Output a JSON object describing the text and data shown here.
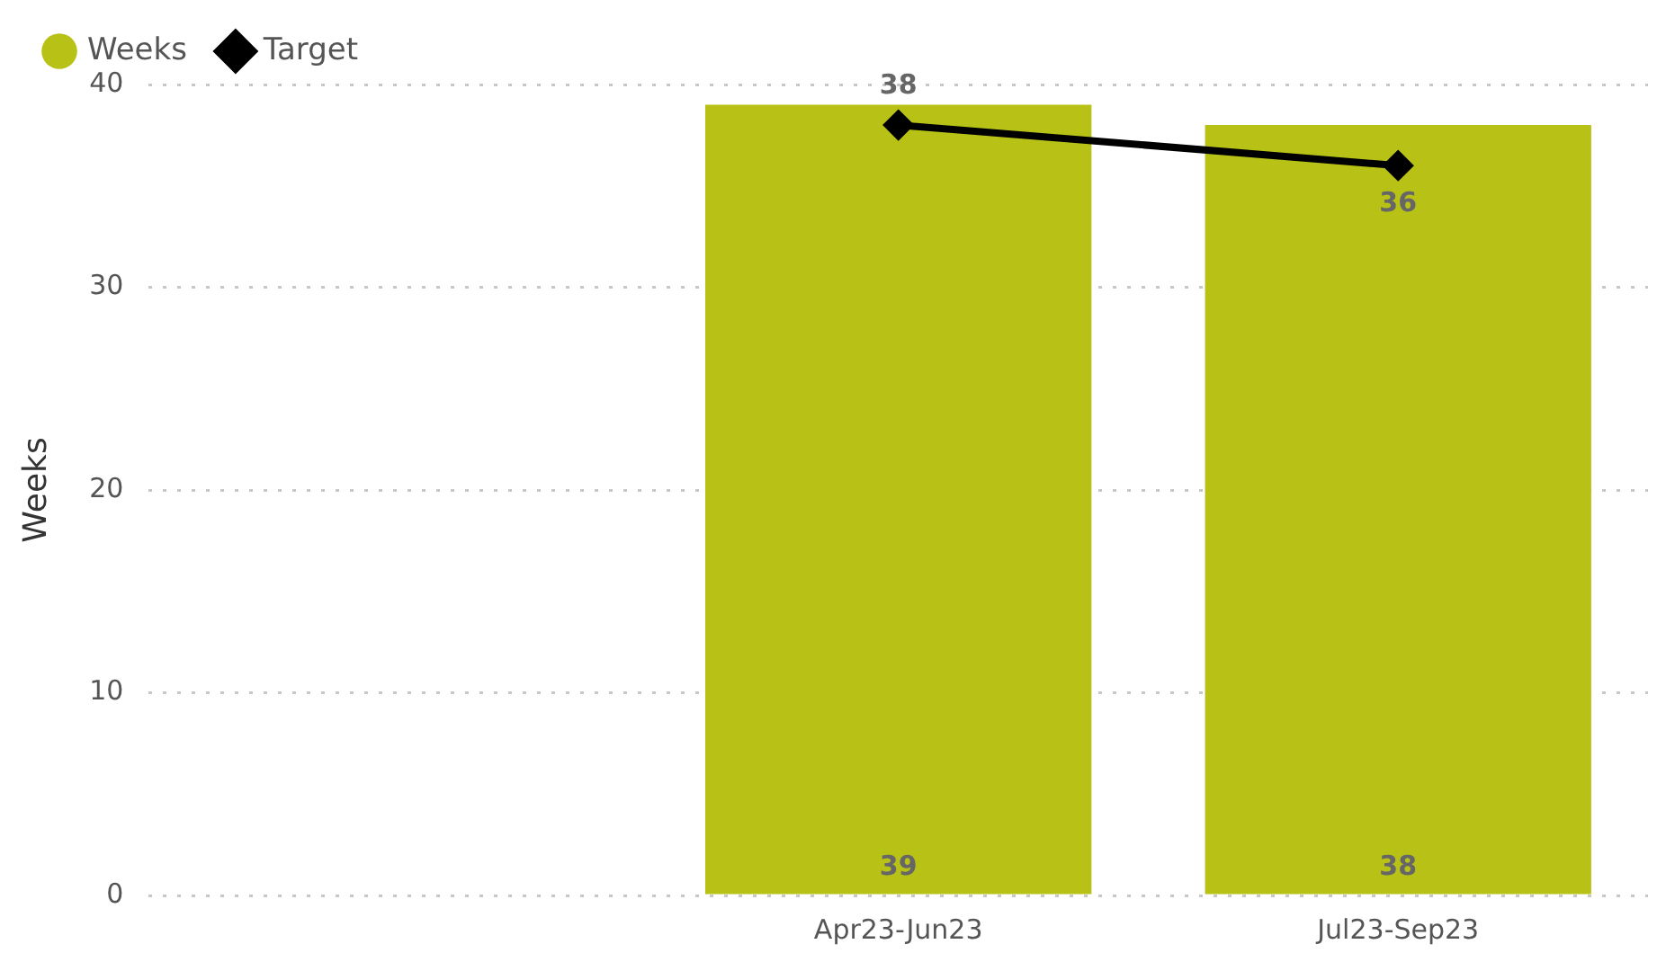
{
  "chart_data": {
    "type": "bar",
    "ylabel": "Weeks",
    "categories": [
      null,
      "Apr23-Jun23",
      "Jul23-Sep23"
    ],
    "series": [
      {
        "name": "Weeks",
        "color": "#b8c115",
        "values": [
          null,
          39,
          38
        ]
      },
      {
        "name": "Target",
        "type": "line",
        "color": "#000000",
        "values": [
          null,
          38,
          36
        ],
        "marker": "diamond"
      }
    ],
    "ylim": [
      0,
      40
    ],
    "yticks": [
      0,
      10,
      20,
      30,
      40
    ],
    "grid": "y",
    "legend": "top left",
    "data_labels": true
  }
}
